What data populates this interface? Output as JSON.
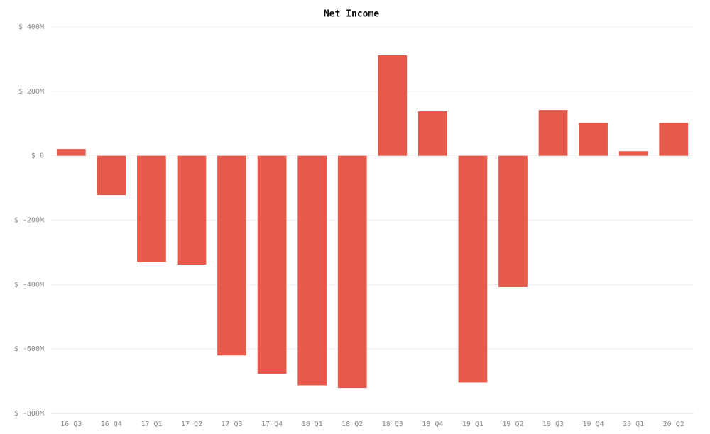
{
  "chart_data": {
    "type": "bar",
    "title": "Net Income",
    "categories": [
      "16 Q3",
      "16 Q4",
      "17 Q1",
      "17 Q2",
      "17 Q3",
      "17 Q4",
      "18 Q1",
      "18 Q2",
      "18 Q3",
      "18 Q4",
      "19 Q1",
      "19 Q2",
      "19 Q3",
      "19 Q4",
      "20 Q1",
      "20 Q2"
    ],
    "values": [
      21,
      -122,
      -331,
      -338,
      -620,
      -677,
      -713,
      -721,
      312,
      138,
      -704,
      -408,
      142,
      102,
      14,
      102
    ],
    "color": "#e65a4b",
    "ylim": [
      -800,
      400
    ],
    "yticks": [
      {
        "value": -800,
        "label": "$ -800M"
      },
      {
        "value": -600,
        "label": "$ -600M"
      },
      {
        "value": -400,
        "label": "$ -400M"
      },
      {
        "value": -200,
        "label": "$ -200M"
      },
      {
        "value": 0,
        "label": "$ 0"
      },
      {
        "value": 200,
        "label": "$ 200M"
      },
      {
        "value": 400,
        "label": "$ 400M"
      }
    ],
    "grid": true
  }
}
